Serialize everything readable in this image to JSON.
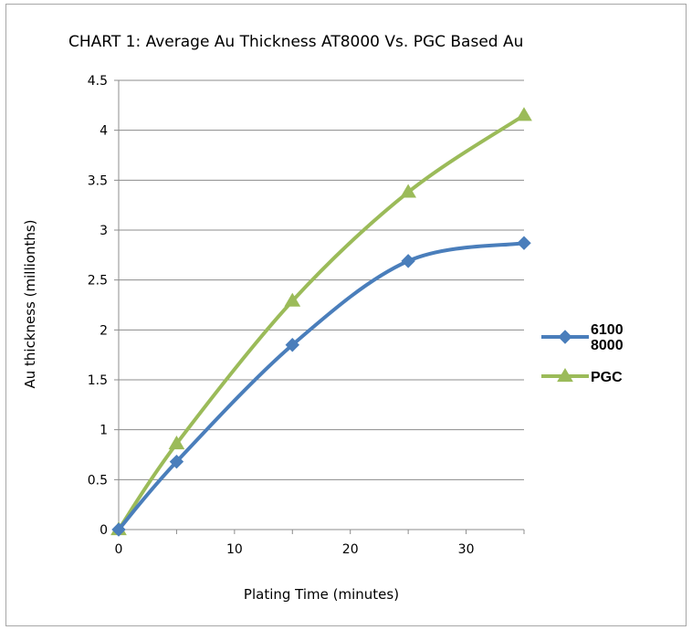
{
  "chart_data": {
    "type": "line",
    "title": "CHART 1: Average Au Thickness AT8000 Vs. PGC Based Au",
    "xlabel": "Plating Time (minutes)",
    "ylabel": "Au thickness (millionths)",
    "xlim": [
      0,
      35
    ],
    "ylim": [
      0,
      4.5
    ],
    "xticks": [
      0,
      10,
      20,
      30
    ],
    "xtick_labels": [
      "0",
      "10",
      "20",
      "30"
    ],
    "yticks": [
      0,
      0.5,
      1,
      1.5,
      2,
      2.5,
      3,
      3.5,
      4,
      4.5
    ],
    "ytick_labels": [
      "0",
      "0.5",
      "1",
      "1.5",
      "2",
      "2.5",
      "3",
      "3.5",
      "4",
      "4.5"
    ],
    "grid": "horizontal",
    "legend_position": "right",
    "series": [
      {
        "name_lines": [
          "6100",
          "8000"
        ],
        "color": "#4a7ebb",
        "marker": "diamond",
        "x": [
          0,
          5,
          15,
          25,
          35
        ],
        "y": [
          0,
          0.68,
          1.85,
          2.69,
          2.87
        ]
      },
      {
        "name_lines": [
          "PGC"
        ],
        "color": "#9bbb59",
        "marker": "triangle",
        "x": [
          0,
          5,
          15,
          25,
          35
        ],
        "y": [
          0,
          0.86,
          2.29,
          3.38,
          4.15
        ]
      }
    ]
  }
}
